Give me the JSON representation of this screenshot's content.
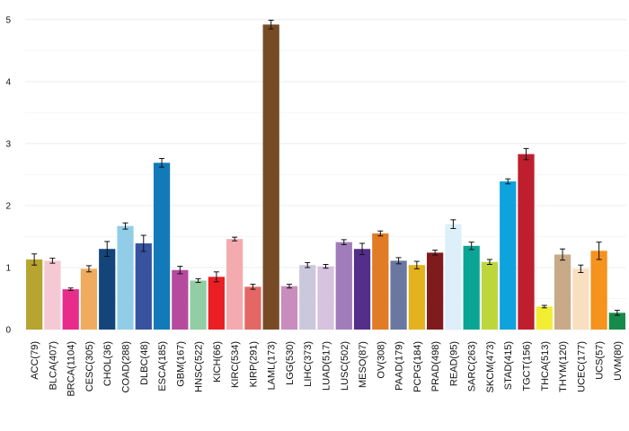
{
  "chart_data": {
    "type": "bar",
    "title": "",
    "xlabel": "",
    "ylabel": "",
    "ylim": [
      0,
      5.2
    ],
    "yticks": [
      0,
      1,
      2,
      3,
      4,
      5
    ],
    "grid": true,
    "error_bars": true,
    "categories": [
      "ACC(79)",
      "BLCA(407)",
      "BRCA(1104)",
      "CESC(305)",
      "CHOL(36)",
      "COAD(288)",
      "DLBC(48)",
      "ESCA(185)",
      "GBM(167)",
      "HNSC(522)",
      "KICH(66)",
      "KIRC(534)",
      "KIRP(291)",
      "LAML(173)",
      "LGG(530)",
      "LIHC(373)",
      "LUAD(517)",
      "LUSC(502)",
      "MESO(87)",
      "OV(308)",
      "PAAD(179)",
      "PCPG(184)",
      "PRAD(498)",
      "READ(95)",
      "SARC(263)",
      "SKCM(473)",
      "STAD(415)",
      "TGCT(156)",
      "THCA(513)",
      "THYM(120)",
      "UCEC(177)",
      "UCS(57)",
      "UVM(80)"
    ],
    "values": [
      1.13,
      1.11,
      0.65,
      0.98,
      1.3,
      1.67,
      1.39,
      2.69,
      0.96,
      0.79,
      0.85,
      1.46,
      0.69,
      4.92,
      0.7,
      1.04,
      1.02,
      1.41,
      1.3,
      1.55,
      1.11,
      1.04,
      1.24,
      1.7,
      1.35,
      1.09,
      2.39,
      2.83,
      0.37,
      1.21,
      0.98,
      1.27,
      0.27
    ],
    "errors": [
      0.09,
      0.04,
      0.02,
      0.05,
      0.12,
      0.05,
      0.13,
      0.07,
      0.06,
      0.03,
      0.08,
      0.03,
      0.04,
      0.07,
      0.03,
      0.04,
      0.03,
      0.04,
      0.09,
      0.04,
      0.05,
      0.06,
      0.04,
      0.07,
      0.06,
      0.04,
      0.04,
      0.09,
      0.02,
      0.09,
      0.06,
      0.14,
      0.04
    ],
    "colors": [
      "#b8a430",
      "#f5c9d3",
      "#e82c8a",
      "#f0ac5e",
      "#13457a",
      "#92cde8",
      "#3753a0",
      "#127ab8",
      "#b54a9e",
      "#92cda4",
      "#ea1f24",
      "#f4abb0",
      "#e36764",
      "#774a26",
      "#c88cbd",
      "#cbc8dc",
      "#d7c2df",
      "#a17cbb",
      "#552d8b",
      "#e17b25",
      "#6a78a1",
      "#e4b21e",
      "#7f1a1d",
      "#ddeff9",
      "#0aa596",
      "#bed63d",
      "#0ea3dd",
      "#be1e2d",
      "#f2ee32",
      "#c9aa88",
      "#f8dfc0",
      "#f6921e",
      "#168a48"
    ]
  }
}
